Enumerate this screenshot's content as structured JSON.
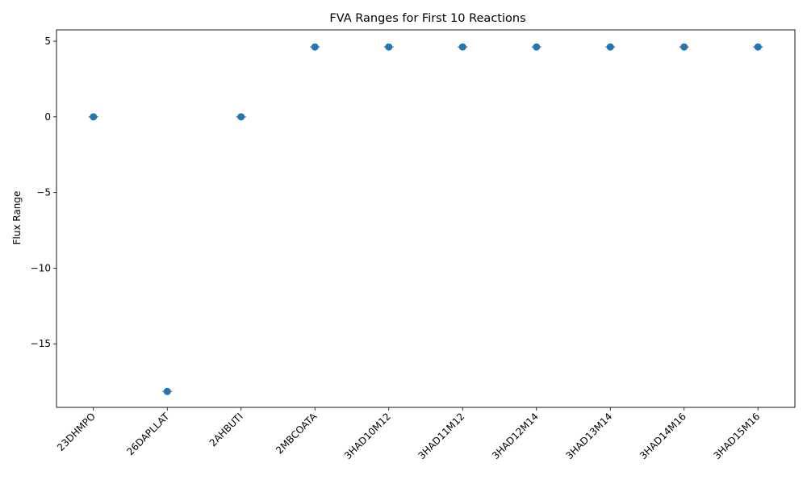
{
  "chart_data": {
    "type": "scatter",
    "title": "FVA Ranges for First 10 Reactions",
    "xlabel": "",
    "ylabel": "Flux Range",
    "categories": [
      "23DHMPO",
      "26DAPLLAT",
      "2AHBUTI",
      "2MBCOATA",
      "3HAD10M12",
      "3HAD11M12",
      "3HAD12M14",
      "3HAD13M14",
      "3HAD14M16",
      "3HAD15M16"
    ],
    "series": [
      {
        "values": [
          0,
          -18.15,
          0,
          4.62,
          4.62,
          4.62,
          4.62,
          4.62,
          4.62,
          4.62
        ],
        "min": [
          0,
          -18.15,
          0,
          4.62,
          4.62,
          4.62,
          4.62,
          4.62,
          4.62,
          4.62
        ],
        "max": [
          0,
          -18.15,
          0,
          4.62,
          4.62,
          4.62,
          4.62,
          4.62,
          4.62,
          4.62
        ]
      }
    ],
    "ylim": [
      -19.2,
      5.75
    ],
    "yticks": [
      -15,
      -10,
      -5,
      0,
      5
    ],
    "ytick_labels": [
      "−15",
      "−10",
      "−5",
      "0",
      "5"
    ],
    "grid": false,
    "colors": {
      "marker": "#1f77b4",
      "range_line": "#d62728"
    }
  }
}
